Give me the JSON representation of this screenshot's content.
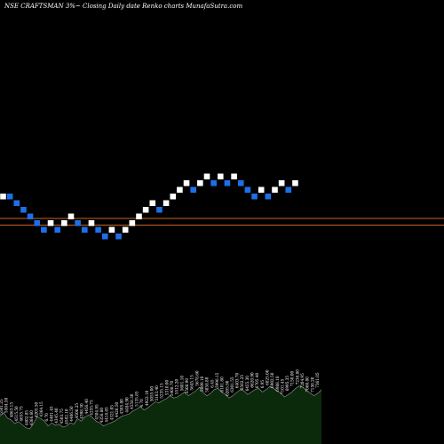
{
  "header": {
    "text": "NSE CRAFTSMAN  3%~  Closing Daily date  Renko  charts MunafaSutra.com"
  },
  "colors": {
    "background": "#000000",
    "up_brick": "#ffffff",
    "down_brick": "#1e6fe8",
    "hline": "#c8641e",
    "volume_fill": "#0b2a0b",
    "volume_line": "#9a9a9a"
  },
  "chart_data": {
    "type": "renko",
    "title": "NSE CRAFTSMAN  3%~  Closing Daily date  Renko  charts MunafaSutra.com",
    "bricks": [
      {
        "level": 0,
        "dir": "up"
      },
      {
        "level": 0,
        "dir": "down"
      },
      {
        "level": -1,
        "dir": "down"
      },
      {
        "level": -2,
        "dir": "down"
      },
      {
        "level": -3,
        "dir": "down"
      },
      {
        "level": -4,
        "dir": "down"
      },
      {
        "level": -5,
        "dir": "down"
      },
      {
        "level": -4,
        "dir": "up"
      },
      {
        "level": -5,
        "dir": "down"
      },
      {
        "level": -4,
        "dir": "up"
      },
      {
        "level": -3,
        "dir": "up"
      },
      {
        "level": -4,
        "dir": "down"
      },
      {
        "level": -5,
        "dir": "down"
      },
      {
        "level": -4,
        "dir": "up"
      },
      {
        "level": -5,
        "dir": "down"
      },
      {
        "level": -6,
        "dir": "down"
      },
      {
        "level": -5,
        "dir": "up"
      },
      {
        "level": -6,
        "dir": "down"
      },
      {
        "level": -5,
        "dir": "up"
      },
      {
        "level": -4,
        "dir": "up"
      },
      {
        "level": -3,
        "dir": "up"
      },
      {
        "level": -2,
        "dir": "up"
      },
      {
        "level": -1,
        "dir": "up"
      },
      {
        "level": -2,
        "dir": "down"
      },
      {
        "level": -1,
        "dir": "up"
      },
      {
        "level": 0,
        "dir": "up"
      },
      {
        "level": 1,
        "dir": "up"
      },
      {
        "level": 2,
        "dir": "up"
      },
      {
        "level": 1,
        "dir": "down"
      },
      {
        "level": 2,
        "dir": "up"
      },
      {
        "level": 3,
        "dir": "up"
      },
      {
        "level": 2,
        "dir": "down"
      },
      {
        "level": 3,
        "dir": "up"
      },
      {
        "level": 2,
        "dir": "down"
      },
      {
        "level": 3,
        "dir": "up"
      },
      {
        "level": 2,
        "dir": "down"
      },
      {
        "level": 1,
        "dir": "down"
      },
      {
        "level": 0,
        "dir": "down"
      },
      {
        "level": 1,
        "dir": "up"
      },
      {
        "level": 0,
        "dir": "down"
      },
      {
        "level": 1,
        "dir": "up"
      },
      {
        "level": 2,
        "dir": "up"
      },
      {
        "level": 1,
        "dir": "down"
      },
      {
        "level": 2,
        "dir": "up"
      }
    ],
    "hlines": [
      {
        "level": -3.3
      },
      {
        "level": -4.3
      }
    ],
    "volume": [
      46,
      52,
      43,
      40,
      34,
      37,
      32,
      27,
      25,
      33,
      45,
      42,
      38,
      30,
      35,
      31,
      33,
      28,
      30,
      35,
      33,
      42,
      38,
      45,
      48,
      44,
      38,
      35,
      30,
      33,
      35,
      38,
      42,
      46,
      48,
      50,
      55,
      58,
      62,
      56,
      60,
      65,
      70,
      68,
      72,
      75,
      80,
      76,
      78,
      82,
      86,
      80,
      84,
      88,
      94,
      85,
      80,
      84,
      90,
      92,
      86,
      82,
      76,
      80,
      85,
      90,
      88,
      82,
      86,
      90,
      92,
      86,
      90,
      95,
      92,
      88,
      84,
      78,
      82,
      86,
      92,
      96,
      94,
      88,
      84,
      80,
      84,
      90
    ],
    "volume_labels": [
      "5501.25",
      "5504.50",
      "4863.15",
      "4515.50",
      "4655.75",
      "4402.85",
      "4366.60",
      "4205.50",
      "4364.15",
      "6.70",
      "4401.45",
      "4345.40",
      "4503.75",
      "4582.10",
      "4406.50",
      "4506.25",
      "4398.30",
      "4456.40",
      "4255.75",
      "4304.95",
      "4356.80",
      "4418.85",
      "4321.05",
      "4426.50",
      "4305.80",
      "4484.90",
      "4558.30",
      "5135.85",
      "4.70",
      "4922.10",
      "5055.00",
      "5163.40",
      "5235.15",
      "5310.00",
      "5408.70",
      "5512.20",
      "5601.10",
      "5508.90",
      "5645.15",
      "5678.60",
      "5809.10",
      "5858.80",
      "6.45",
      "5996.15",
      "6101.80",
      "6205.90",
      "6301.55",
      "6403.70",
      "6502.25",
      "6455.30",
      "6620.90",
      "6705.40",
      "6.95",
      "6825.00",
      "6902.50",
      "6988.10",
      "7101.45",
      "6995.35",
      "7150.00",
      "7236.80",
      "7204.95",
      "7060.80",
      "7150.20",
      "7361.05"
    ]
  }
}
